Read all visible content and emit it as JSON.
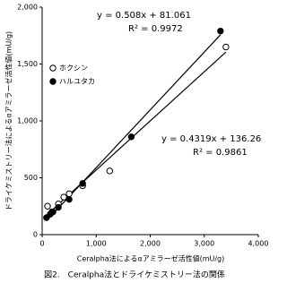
{
  "chart_data": {
    "type": "scatter",
    "xlabel": "Ceralpha法によるαアミラーゼ活性値(mU/g)",
    "ylabel": "ドライケミストリー法によるαアミラーゼ活性値(mU/g)",
    "caption": "図2.　Ceralpha法とドライケミストリー法の関係",
    "xlim": [
      0,
      4000
    ],
    "xticks": [
      0,
      {
        "value": 1000,
        "label": "1,000"
      },
      {
        "value": 2000,
        "label": "2,000"
      },
      {
        "value": 3000,
        "label": "3,000"
      },
      {
        "value": 4000,
        "label": "4,000"
      }
    ],
    "ylim": [
      0,
      2000
    ],
    "yticks": [
      0,
      500,
      {
        "value": 1000,
        "label": "1,000"
      },
      {
        "value": 1500,
        "label": "1,500"
      },
      {
        "value": 2000,
        "label": "2,000"
      }
    ],
    "legend": "upper left",
    "series": [
      {
        "name": "ホクシン",
        "marker": "open",
        "color": "#000000",
        "x": [
          100,
          180,
          300,
          400,
          500,
          750,
          1250,
          3400
        ],
        "y": [
          250,
          200,
          270,
          330,
          360,
          430,
          560,
          1650
        ]
      },
      {
        "name": "ハルユタカ",
        "marker": "filled",
        "color": "#000000",
        "x": [
          80,
          150,
          200,
          300,
          500,
          750,
          1650,
          3300
        ],
        "y": [
          150,
          180,
          200,
          240,
          310,
          450,
          860,
          1790
        ]
      }
    ],
    "trendlines": [
      {
        "series": 1,
        "slope": 0.508,
        "intercept": 81.061,
        "label": "y = 0.508x + 81.061",
        "r2": 0.9972,
        "r2_label": "R² = 0.9972"
      },
      {
        "series": 0,
        "slope": 0.4319,
        "intercept": 136.26,
        "label": "y = 0.4319x + 136.26",
        "r2": 0.9861,
        "r2_label": "R² = 0.9861"
      }
    ]
  }
}
